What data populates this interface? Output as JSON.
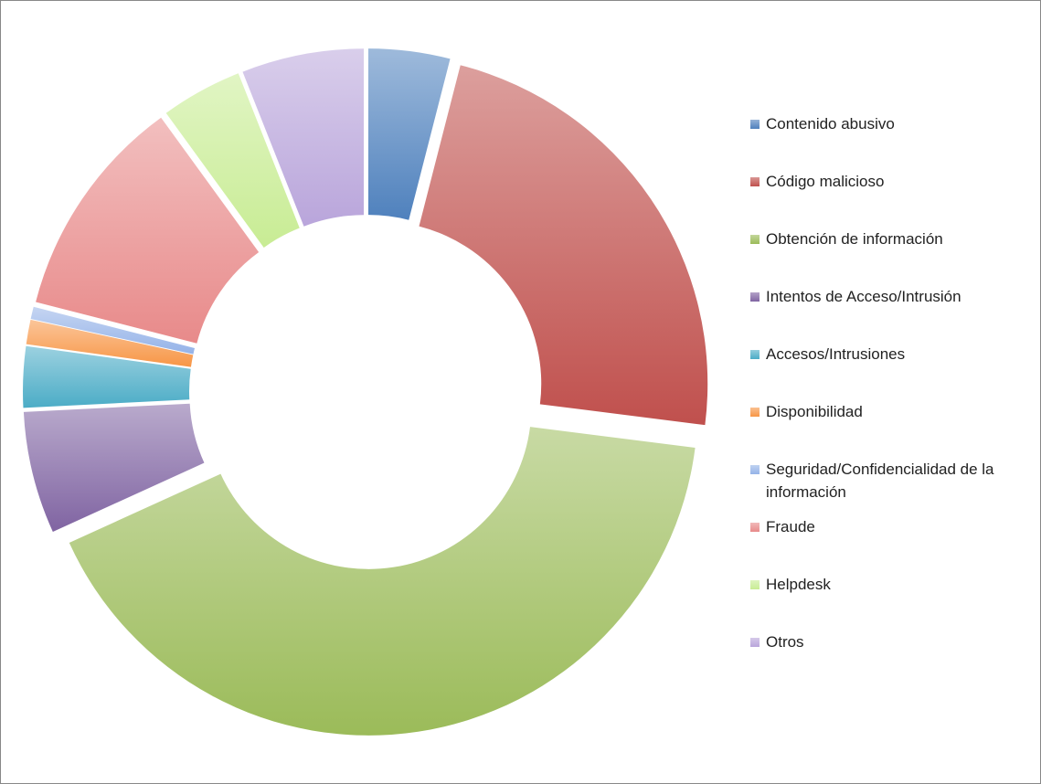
{
  "chart_data": {
    "type": "donut",
    "categories": [
      "Contenido abusivo",
      "Código malicioso",
      "Obtención de información",
      "Intentos de Acceso/Intrusión",
      "Accesos/Intrusiones",
      "Disponibilidad",
      "Seguridad/Confidencialidad de la información",
      "Fraude",
      "Helpdesk",
      "Otros"
    ],
    "values": [
      4,
      23,
      41.2,
      6,
      3,
      1.2,
      0.6,
      11,
      4,
      6
    ],
    "colors": [
      "#4f81bd",
      "#c0504d",
      "#9bbb59",
      "#8064a2",
      "#4bacc6",
      "#f79646",
      "#95b3e8",
      "#e88a8a",
      "#c8ec94",
      "#b9a5db"
    ],
    "legend": "right"
  }
}
